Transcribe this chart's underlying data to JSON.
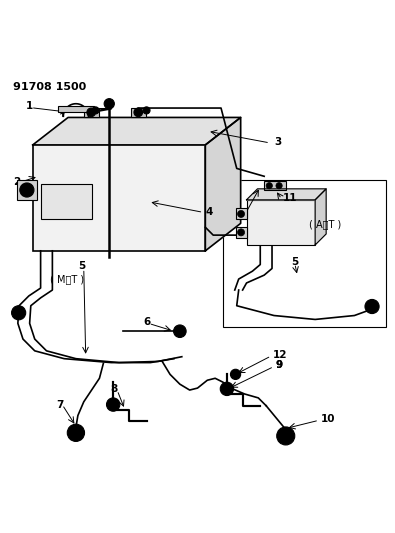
{
  "title": "91708 1500",
  "background_color": "#ffffff",
  "line_color": "#000000",
  "fig_width": 3.95,
  "fig_height": 5.33,
  "dpi": 100
}
